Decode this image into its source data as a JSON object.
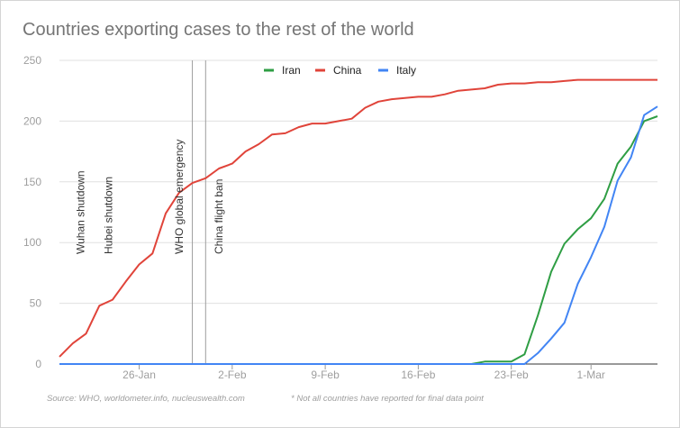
{
  "chart_data": {
    "type": "line",
    "title": "Countries exporting cases to the rest of the world",
    "xlabel": "",
    "ylabel": "",
    "ylim": [
      0,
      250
    ],
    "yticks": [
      0,
      50,
      100,
      150,
      200,
      250
    ],
    "x_start": "20-Jan",
    "x_count": 46,
    "xticks": [
      {
        "label": "26-Jan",
        "index": 6
      },
      {
        "label": "2-Feb",
        "index": 13
      },
      {
        "label": "9-Feb",
        "index": 20
      },
      {
        "label": "16-Feb",
        "index": 27
      },
      {
        "label": "23-Feb",
        "index": 34
      },
      {
        "label": "1-Mar",
        "index": 40
      }
    ],
    "series": [
      {
        "name": "Iran",
        "color": "#2f9e44",
        "values": [
          0,
          0,
          0,
          0,
          0,
          0,
          0,
          0,
          0,
          0,
          0,
          0,
          0,
          0,
          0,
          0,
          0,
          0,
          0,
          0,
          0,
          0,
          0,
          0,
          0,
          0,
          0,
          0,
          0,
          0,
          0,
          0,
          2,
          2,
          2,
          8,
          40,
          76,
          99,
          111,
          120,
          136,
          165,
          179,
          200,
          204
        ]
      },
      {
        "name": "China",
        "color": "#e0443a",
        "values": [
          6,
          17,
          25,
          48,
          53,
          68,
          82,
          91,
          124,
          141,
          149,
          153,
          161,
          165,
          175,
          181,
          189,
          190,
          195,
          198,
          198,
          200,
          202,
          211,
          216,
          218,
          219,
          220,
          220,
          222,
          225,
          226,
          227,
          230,
          231,
          231,
          232,
          232,
          233,
          234,
          234,
          234,
          234,
          234,
          234,
          234
        ]
      },
      {
        "name": "Italy",
        "color": "#4285f4",
        "values": [
          0,
          0,
          0,
          0,
          0,
          0,
          0,
          0,
          0,
          0,
          0,
          0,
          0,
          0,
          0,
          0,
          0,
          0,
          0,
          0,
          0,
          0,
          0,
          0,
          0,
          0,
          0,
          0,
          0,
          0,
          0,
          0,
          0,
          0,
          0,
          0,
          9,
          21,
          34,
          66,
          88,
          113,
          151,
          170,
          205,
          212
        ]
      }
    ],
    "annotations": [
      {
        "label": "Wuhan shutdown",
        "index": 1.6
      },
      {
        "label": "Hubei shutdown",
        "index": 3.7
      },
      {
        "label": "WHO global emergency",
        "index": 9
      },
      {
        "label": "China flight ban",
        "index": 12
      }
    ],
    "reference_lines": [
      10,
      11
    ],
    "legend": "top-center",
    "grid": true
  },
  "footer": {
    "source": "Source: WHO, worldometer.info, nucleuswealth.com",
    "note": "* Not all countries have reported for final data point"
  }
}
